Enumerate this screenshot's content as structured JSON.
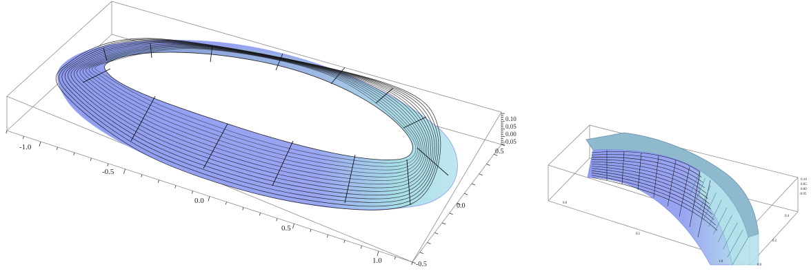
{
  "plots": [
    {
      "name": "full-ring-plot",
      "axes": {
        "x_ticks": [
          "-1.0",
          "-0.5",
          "0.0",
          "0.5",
          "1.0"
        ],
        "y_ticks": [
          "0.5",
          "0.0",
          "-0.5"
        ],
        "z_ticks": [
          "0.10",
          "0.05",
          "0.00",
          "-0.05"
        ]
      },
      "colors": {
        "surface": "#8f9cf0",
        "surface_light": "#b9c2f7",
        "edge": "#a8dde8",
        "mesh": "#111111"
      }
    },
    {
      "name": "quarter-section-plot",
      "axes": {
        "x_ticks": [
          "0.0",
          "0.5",
          "1.0"
        ],
        "y_ticks": [
          "0.4",
          "0.2",
          "0.0"
        ],
        "z_ticks": [
          "0.10",
          "0.05",
          "0.00",
          "-0.05"
        ]
      },
      "colors": {
        "surface": "#8f9cf0",
        "edge": "#a8dde8",
        "mesh": "#111111"
      }
    }
  ]
}
